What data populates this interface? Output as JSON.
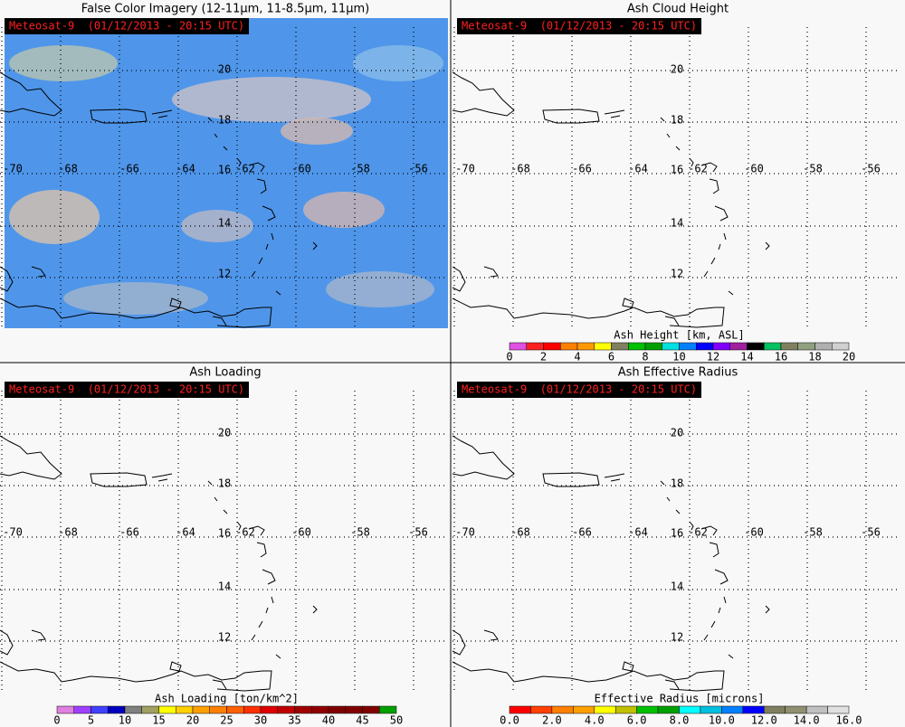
{
  "panels": [
    {
      "title": "False Color Imagery (12-11μm, 11-8.5μm, 11μm)",
      "stamp": "Meteosat-9  (01/12/2013 - 20:15 UTC)",
      "lat_labels": [
        "20",
        "18",
        "16",
        "14",
        "12"
      ],
      "lon_labels": [
        "-70",
        "-68",
        "-66",
        "-64",
        "-62",
        "-60",
        "-58",
        "-56"
      ]
    },
    {
      "title": "Ash Cloud Height",
      "stamp": "Meteosat-9  (01/12/2013 - 20:15 UTC)",
      "lat_labels": [
        "20",
        "18",
        "16",
        "14",
        "12"
      ],
      "lon_labels": [
        "-70",
        "-68",
        "-66",
        "-64",
        "-62",
        "-60",
        "-58",
        "-56"
      ],
      "colorbar": {
        "label": "Ash Height [km, ASL]",
        "ticks": [
          "0",
          "2",
          "4",
          "6",
          "8",
          "10",
          "12",
          "14",
          "16",
          "18",
          "20"
        ],
        "colors": [
          "#e050e0",
          "#ff2020",
          "#ff0000",
          "#ff8000",
          "#ff9900",
          "#ffff00",
          "#808060",
          "#00c000",
          "#00a000",
          "#00e0e0",
          "#0080ff",
          "#0000ff",
          "#8000ff",
          "#a020a0",
          "#000000",
          "#00c060",
          "#808060",
          "#90a080",
          "#b0b0b0",
          "#d0d0d0"
        ]
      }
    },
    {
      "title": "Ash Loading",
      "stamp": "Meteosat-9  (01/12/2013 - 20:15 UTC)",
      "lat_labels": [
        "20",
        "18",
        "16",
        "14",
        "12"
      ],
      "lon_labels": [
        "-70",
        "-68",
        "-66",
        "-64",
        "-62",
        "-60",
        "-58",
        "-56"
      ],
      "colorbar": {
        "label": "Ash Loading [ton/km^2]",
        "ticks": [
          "0",
          "5",
          "10",
          "15",
          "20",
          "25",
          "30",
          "35",
          "40",
          "45",
          "50"
        ],
        "colors": [
          "#e080e0",
          "#a040ff",
          "#4040ff",
          "#0000c0",
          "#808080",
          "#a0a060",
          "#ffff00",
          "#ffd000",
          "#ffa000",
          "#ff8000",
          "#ff6000",
          "#ff3000",
          "#e00000",
          "#c00000",
          "#a00000",
          "#900000",
          "#800000",
          "#800000",
          "#800000",
          "#00a000"
        ]
      }
    },
    {
      "title": "Ash Effective Radius",
      "stamp": "Meteosat-9  (01/12/2013 - 20:15 UTC)",
      "lat_labels": [
        "20",
        "18",
        "16",
        "14",
        "12"
      ],
      "lon_labels": [
        "-70",
        "-68",
        "-66",
        "-64",
        "-62",
        "-60",
        "-58",
        "-56"
      ],
      "colorbar": {
        "label": "Effective Radius [microns]",
        "ticks": [
          "0.0",
          "2.0",
          "4.0",
          "6.0",
          "8.0",
          "10.0",
          "12.0",
          "14.0",
          "16.0"
        ],
        "colors": [
          "#ff0000",
          "#ff4000",
          "#ff8000",
          "#ffa000",
          "#ffff00",
          "#c0c000",
          "#00c000",
          "#00a000",
          "#00ffff",
          "#00c0e0",
          "#0080ff",
          "#0000ff",
          "#808060",
          "#909070",
          "#c0c0c0",
          "#e0e0e0"
        ]
      }
    }
  ]
}
